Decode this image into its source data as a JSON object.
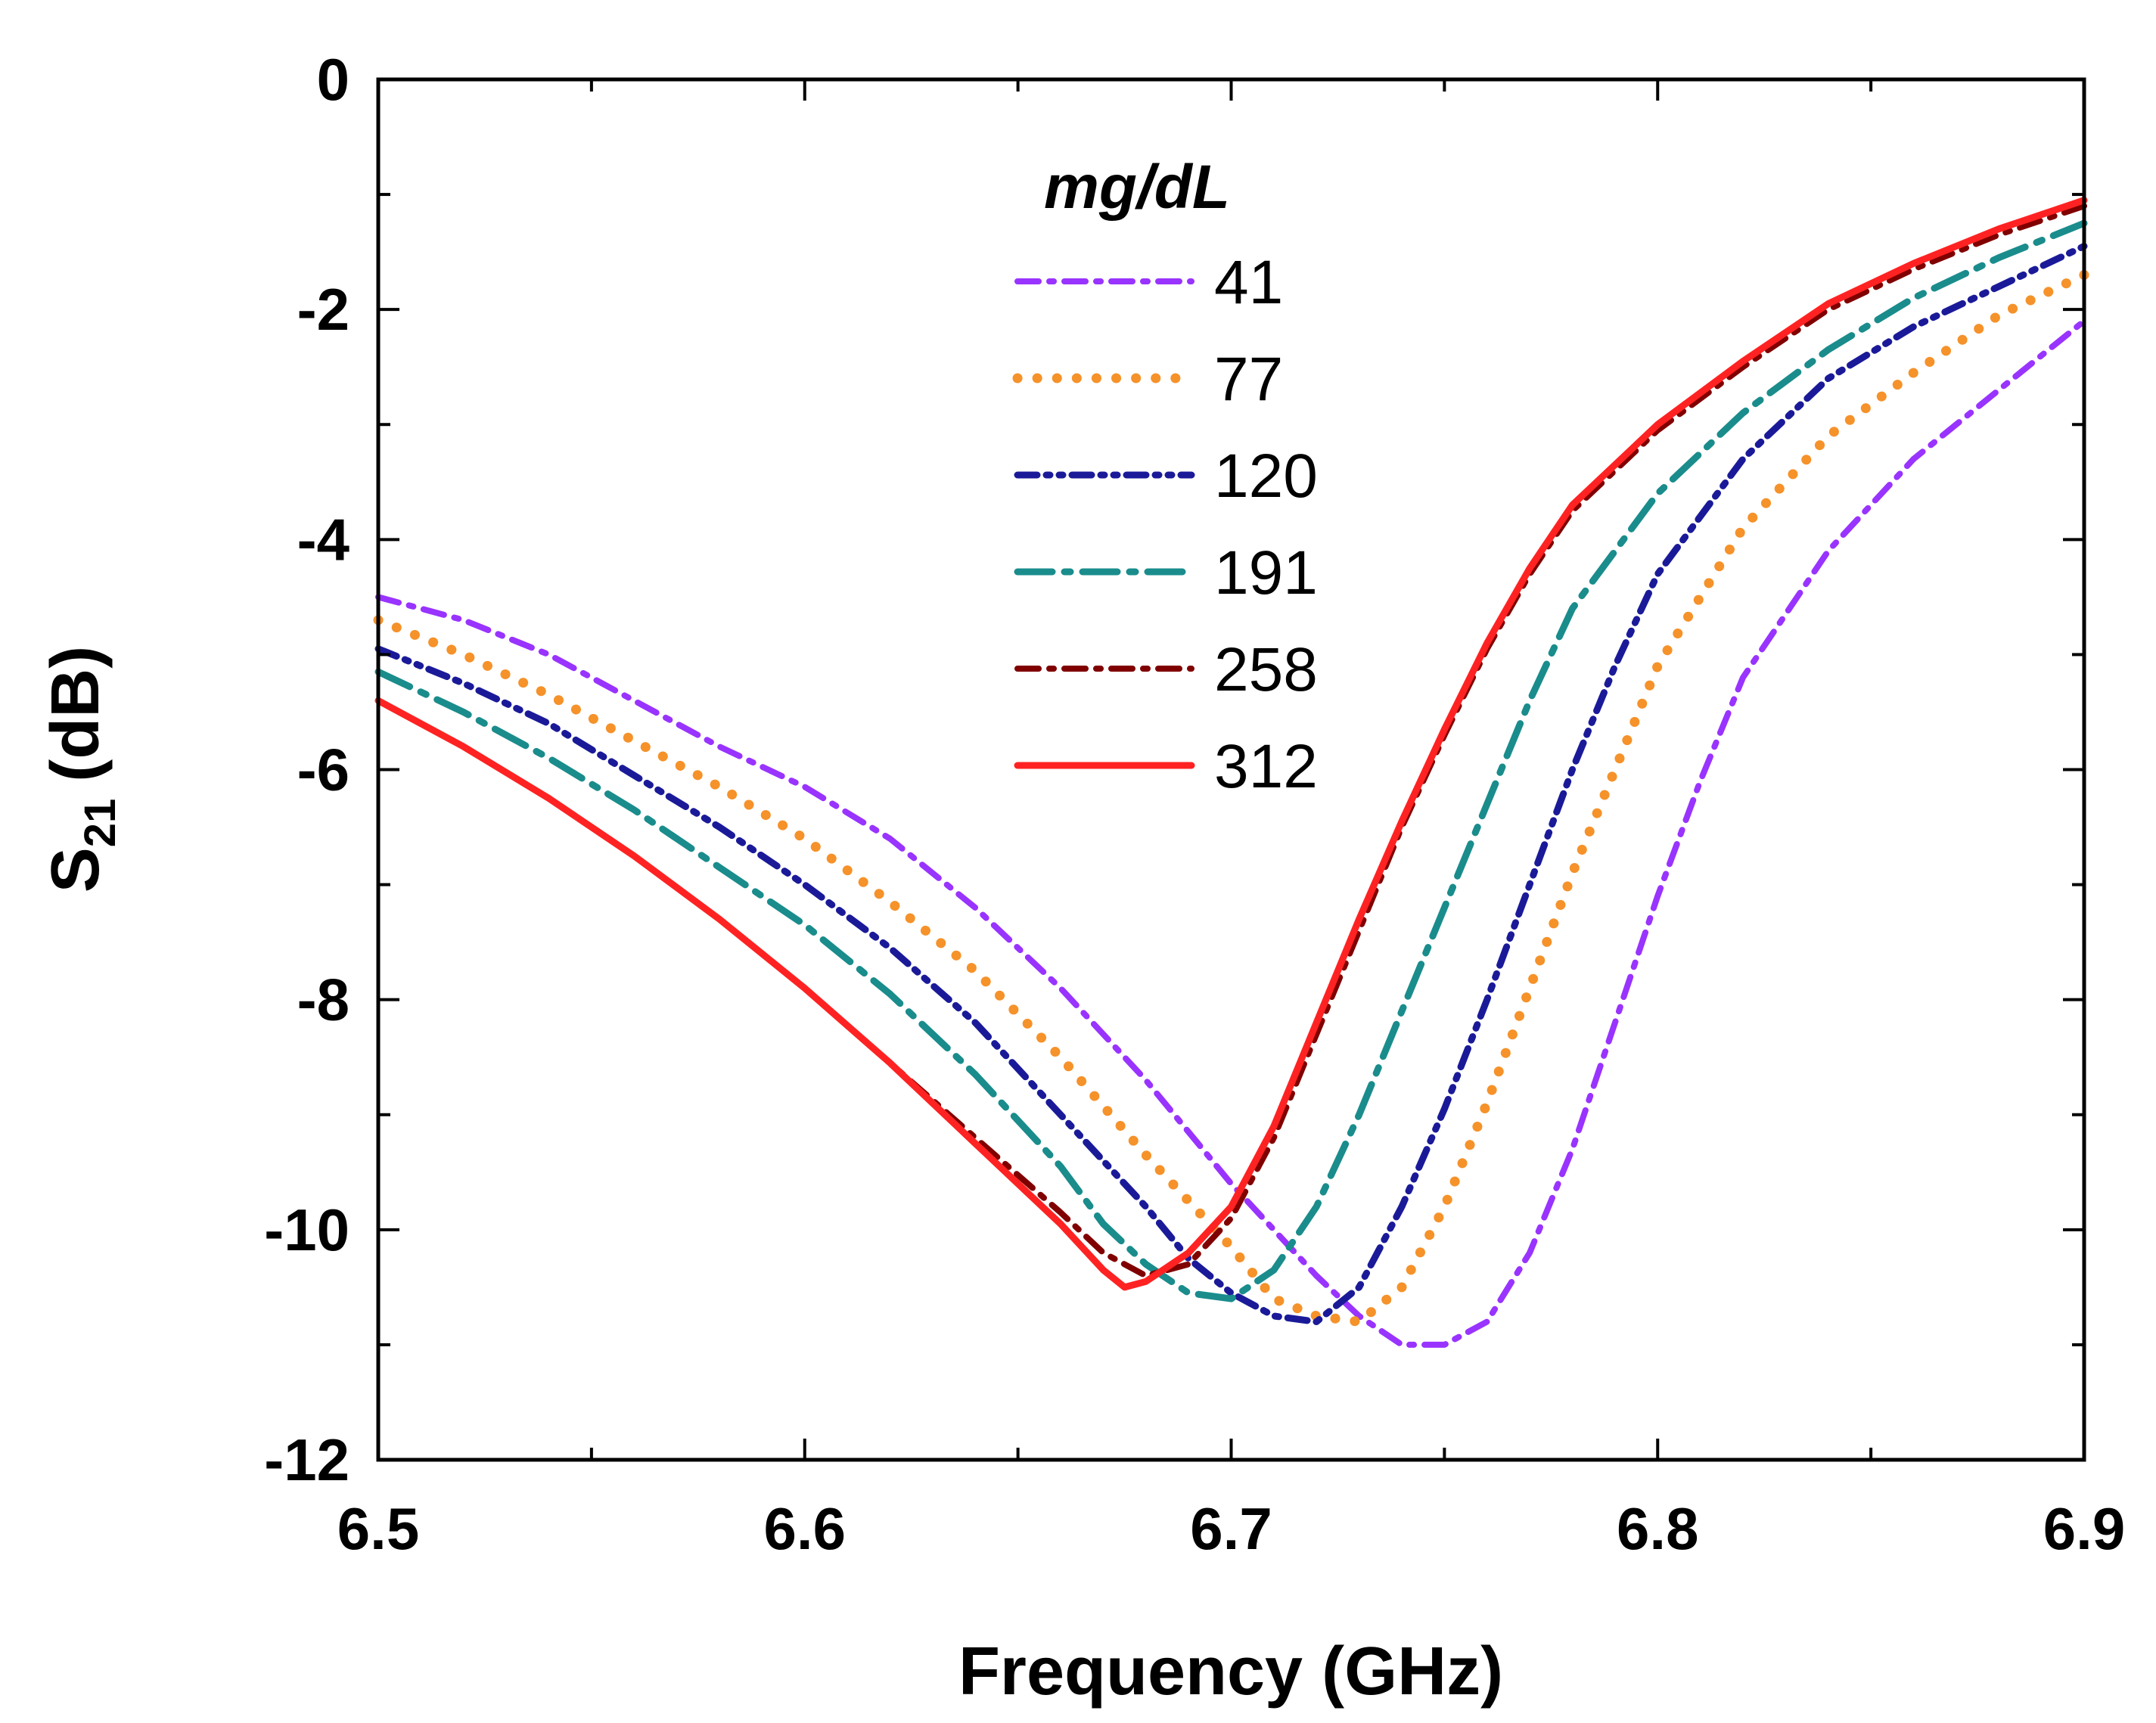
{
  "chart_data": {
    "type": "line",
    "title": "",
    "xlabel": "Frequency (GHz)",
    "ylabel_main": "S",
    "ylabel_sub": "21",
    "ylabel_unit": "(dB)",
    "xlim": [
      6.5,
      6.9
    ],
    "ylim": [
      -12,
      0
    ],
    "xticks": [
      6.5,
      6.6,
      6.7,
      6.8,
      6.9
    ],
    "xtick_labels": [
      "6.5",
      "6.6",
      "6.7",
      "6.8",
      "6.9"
    ],
    "yticks": [
      0,
      -2,
      -4,
      -6,
      -8,
      -10,
      -12
    ],
    "ytick_labels": [
      "0",
      "-2",
      "-4",
      "-6",
      "-8",
      "-10",
      "-12"
    ],
    "grid": false,
    "legend": {
      "title": "mg/dL",
      "position": "top-center"
    },
    "series": [
      {
        "name": "41",
        "color": "#9933FF",
        "style": "dashdot",
        "points": [
          [
            6.5,
            -4.5
          ],
          [
            6.52,
            -4.7
          ],
          [
            6.54,
            -5.0
          ],
          [
            6.56,
            -5.4
          ],
          [
            6.58,
            -5.8
          ],
          [
            6.6,
            -6.15
          ],
          [
            6.62,
            -6.6
          ],
          [
            6.64,
            -7.2
          ],
          [
            6.66,
            -7.9
          ],
          [
            6.68,
            -8.7
          ],
          [
            6.7,
            -9.6
          ],
          [
            6.72,
            -10.4
          ],
          [
            6.73,
            -10.75
          ],
          [
            6.74,
            -11.0
          ],
          [
            6.75,
            -11.0
          ],
          [
            6.76,
            -10.8
          ],
          [
            6.77,
            -10.2
          ],
          [
            6.78,
            -9.3
          ],
          [
            6.79,
            -8.2
          ],
          [
            6.8,
            -7.1
          ],
          [
            6.81,
            -6.1
          ],
          [
            6.82,
            -5.2
          ],
          [
            6.84,
            -4.1
          ],
          [
            6.86,
            -3.3
          ],
          [
            6.88,
            -2.7
          ],
          [
            6.9,
            -2.1
          ]
        ]
      },
      {
        "name": "77",
        "color": "#F5922A",
        "style": "dotted",
        "points": [
          [
            6.5,
            -4.7
          ],
          [
            6.52,
            -5.0
          ],
          [
            6.54,
            -5.35
          ],
          [
            6.56,
            -5.75
          ],
          [
            6.58,
            -6.15
          ],
          [
            6.6,
            -6.6
          ],
          [
            6.62,
            -7.15
          ],
          [
            6.64,
            -7.75
          ],
          [
            6.66,
            -8.5
          ],
          [
            6.68,
            -9.35
          ],
          [
            6.7,
            -10.15
          ],
          [
            6.71,
            -10.6
          ],
          [
            6.72,
            -10.75
          ],
          [
            6.73,
            -10.8
          ],
          [
            6.74,
            -10.5
          ],
          [
            6.75,
            -9.8
          ],
          [
            6.76,
            -8.9
          ],
          [
            6.77,
            -7.9
          ],
          [
            6.78,
            -6.9
          ],
          [
            6.79,
            -6.0
          ],
          [
            6.8,
            -5.1
          ],
          [
            6.82,
            -3.9
          ],
          [
            6.84,
            -3.1
          ],
          [
            6.86,
            -2.55
          ],
          [
            6.88,
            -2.05
          ],
          [
            6.9,
            -1.7
          ]
        ]
      },
      {
        "name": "120",
        "color": "#1A1A99",
        "style": "dashdotdot",
        "points": [
          [
            6.5,
            -4.95
          ],
          [
            6.52,
            -5.25
          ],
          [
            6.54,
            -5.6
          ],
          [
            6.56,
            -6.05
          ],
          [
            6.58,
            -6.5
          ],
          [
            6.6,
            -7.0
          ],
          [
            6.62,
            -7.55
          ],
          [
            6.64,
            -8.2
          ],
          [
            6.66,
            -9.0
          ],
          [
            6.68,
            -9.8
          ],
          [
            6.69,
            -10.25
          ],
          [
            6.7,
            -10.55
          ],
          [
            6.71,
            -10.75
          ],
          [
            6.72,
            -10.8
          ],
          [
            6.73,
            -10.5
          ],
          [
            6.74,
            -9.8
          ],
          [
            6.75,
            -8.95
          ],
          [
            6.76,
            -8.0
          ],
          [
            6.77,
            -7.0
          ],
          [
            6.78,
            -6.0
          ],
          [
            6.79,
            -5.1
          ],
          [
            6.8,
            -4.3
          ],
          [
            6.82,
            -3.3
          ],
          [
            6.84,
            -2.6
          ],
          [
            6.86,
            -2.15
          ],
          [
            6.88,
            -1.8
          ],
          [
            6.9,
            -1.45
          ]
        ]
      },
      {
        "name": "191",
        "color": "#1A8C8C",
        "style": "dashdot-long",
        "points": [
          [
            6.5,
            -5.15
          ],
          [
            6.52,
            -5.5
          ],
          [
            6.54,
            -5.9
          ],
          [
            6.56,
            -6.35
          ],
          [
            6.58,
            -6.85
          ],
          [
            6.6,
            -7.35
          ],
          [
            6.62,
            -7.95
          ],
          [
            6.64,
            -8.65
          ],
          [
            6.66,
            -9.45
          ],
          [
            6.67,
            -9.95
          ],
          [
            6.68,
            -10.3
          ],
          [
            6.69,
            -10.55
          ],
          [
            6.7,
            -10.6
          ],
          [
            6.71,
            -10.35
          ],
          [
            6.72,
            -9.8
          ],
          [
            6.73,
            -9.0
          ],
          [
            6.74,
            -8.1
          ],
          [
            6.75,
            -7.2
          ],
          [
            6.76,
            -6.3
          ],
          [
            6.77,
            -5.4
          ],
          [
            6.78,
            -4.6
          ],
          [
            6.8,
            -3.6
          ],
          [
            6.82,
            -2.9
          ],
          [
            6.84,
            -2.35
          ],
          [
            6.86,
            -1.9
          ],
          [
            6.88,
            -1.55
          ],
          [
            6.9,
            -1.25
          ]
        ]
      },
      {
        "name": "258",
        "color": "#800000",
        "style": "dashdot",
        "points": [
          [
            6.5,
            -5.4
          ],
          [
            6.52,
            -5.8
          ],
          [
            6.54,
            -6.25
          ],
          [
            6.56,
            -6.75
          ],
          [
            6.58,
            -7.3
          ],
          [
            6.6,
            -7.9
          ],
          [
            6.62,
            -8.55
          ],
          [
            6.64,
            -9.2
          ],
          [
            6.66,
            -9.85
          ],
          [
            6.67,
            -10.2
          ],
          [
            6.68,
            -10.4
          ],
          [
            6.69,
            -10.3
          ],
          [
            6.7,
            -9.9
          ],
          [
            6.71,
            -9.2
          ],
          [
            6.72,
            -8.3
          ],
          [
            6.73,
            -7.4
          ],
          [
            6.74,
            -6.5
          ],
          [
            6.75,
            -5.7
          ],
          [
            6.76,
            -4.95
          ],
          [
            6.77,
            -4.3
          ],
          [
            6.78,
            -3.75
          ],
          [
            6.8,
            -3.05
          ],
          [
            6.82,
            -2.5
          ],
          [
            6.84,
            -2.0
          ],
          [
            6.86,
            -1.65
          ],
          [
            6.88,
            -1.35
          ],
          [
            6.9,
            -1.1
          ]
        ]
      },
      {
        "name": "312",
        "color": "#FF2222",
        "style": "solid",
        "points": [
          [
            6.5,
            -5.4
          ],
          [
            6.52,
            -5.8
          ],
          [
            6.54,
            -6.25
          ],
          [
            6.56,
            -6.75
          ],
          [
            6.58,
            -7.3
          ],
          [
            6.6,
            -7.9
          ],
          [
            6.62,
            -8.55
          ],
          [
            6.64,
            -9.25
          ],
          [
            6.66,
            -9.95
          ],
          [
            6.67,
            -10.35
          ],
          [
            6.675,
            -10.5
          ],
          [
            6.68,
            -10.45
          ],
          [
            6.69,
            -10.2
          ],
          [
            6.7,
            -9.8
          ],
          [
            6.71,
            -9.1
          ],
          [
            6.72,
            -8.2
          ],
          [
            6.73,
            -7.3
          ],
          [
            6.74,
            -6.45
          ],
          [
            6.75,
            -5.65
          ],
          [
            6.76,
            -4.9
          ],
          [
            6.77,
            -4.25
          ],
          [
            6.78,
            -3.7
          ],
          [
            6.8,
            -3.0
          ],
          [
            6.82,
            -2.45
          ],
          [
            6.84,
            -1.95
          ],
          [
            6.86,
            -1.6
          ],
          [
            6.88,
            -1.3
          ],
          [
            6.9,
            -1.05
          ]
        ]
      }
    ]
  }
}
